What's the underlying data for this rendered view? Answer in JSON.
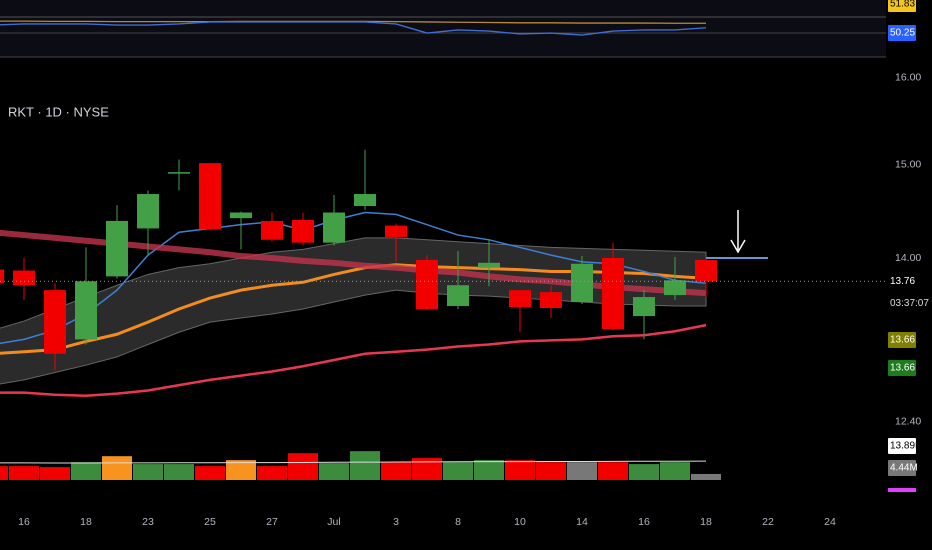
{
  "chart_data": {
    "type": "candlestick",
    "title": "RKT · 1D · NYSE",
    "categories": [
      null,
      "16",
      null,
      "18",
      null,
      "23",
      null,
      "25",
      null,
      "27",
      null,
      "Jul",
      null,
      "3",
      null,
      "8",
      null,
      "10",
      null,
      "14",
      null,
      "16",
      null,
      "18",
      null,
      "22",
      null,
      "24"
    ],
    "open": [
      13.88,
      13.87,
      13.67,
      13.18,
      13.81,
      14.31,
      14.91,
      15.02,
      14.42,
      14.39,
      14.4,
      14.16,
      14.55,
      14.34,
      13.98,
      13.51,
      13.9,
      13.67,
      13.65,
      13.55,
      14.0,
      13.41,
      13.62,
      13.98,
      null,
      null,
      null,
      null
    ],
    "high": [
      13.93,
      14.0,
      13.74,
      14.11,
      14.56,
      14.72,
      15.06,
      15.02,
      14.49,
      14.48,
      14.48,
      14.67,
      15.17,
      14.36,
      14.03,
      14.07,
      14.19,
      13.67,
      13.72,
      14.02,
      14.16,
      13.67,
      14.01,
      14.0,
      null,
      null,
      null,
      null
    ],
    "low": [
      13.67,
      13.57,
      12.88,
      13.13,
      13.79,
      14.03,
      14.72,
      14.29,
      14.09,
      14.17,
      14.13,
      14.13,
      14.51,
      13.96,
      13.47,
      13.48,
      13.71,
      13.25,
      13.39,
      13.53,
      13.27,
      13.18,
      13.57,
      13.6,
      null,
      null,
      null,
      null
    ],
    "close": [
      13.74,
      13.72,
      13.04,
      13.76,
      14.39,
      14.68,
      14.92,
      14.3,
      14.48,
      14.19,
      14.16,
      14.48,
      14.68,
      14.22,
      13.48,
      13.72,
      13.95,
      13.5,
      13.49,
      13.94,
      13.28,
      13.6,
      13.77,
      13.76,
      null,
      null,
      null,
      null
    ],
    "up_color": "#43a047",
    "down_color": "#f20000",
    "ylim": [
      11.7,
      16.25
    ],
    "log_scale": true,
    "yticks": [
      {
        "value": 16,
        "label": "16.00"
      },
      {
        "value": 15,
        "label": "15.00"
      },
      {
        "value": 14,
        "label": "14.00"
      },
      {
        "value": 12.4,
        "label": "12.40"
      }
    ],
    "countdown": "03:37:07",
    "badges": [
      {
        "label": "13.66",
        "color": "#7f7f00"
      },
      {
        "label": "13.66",
        "color": "#1e7b1e"
      }
    ],
    "band": {
      "color": "#3a3a3a",
      "upper": [
        13.27,
        13.36,
        13.48,
        13.6,
        13.72,
        13.83,
        13.9,
        13.94,
        14.0,
        14.06,
        14.09,
        14.15,
        14.21,
        14.21,
        14.19,
        14.17,
        14.15,
        14.13,
        14.11,
        14.1,
        14.09,
        14.08,
        14.07,
        14.06,
        null,
        null,
        null,
        null
      ],
      "lower": [
        12.74,
        12.79,
        12.86,
        12.93,
        13.01,
        13.13,
        13.25,
        13.35,
        13.39,
        13.43,
        13.48,
        13.55,
        13.62,
        13.67,
        13.64,
        13.62,
        13.61,
        13.59,
        13.57,
        13.55,
        13.53,
        13.52,
        13.51,
        13.51,
        null,
        null,
        null,
        null
      ]
    },
    "overlays": [
      {
        "color": "#e8384f",
        "width": 2.5,
        "values": [
          12.67,
          12.67,
          12.65,
          12.64,
          12.66,
          12.69,
          12.74,
          12.79,
          12.83,
          12.87,
          12.92,
          12.98,
          13.04,
          13.06,
          13.08,
          13.11,
          13.13,
          13.16,
          13.17,
          13.18,
          13.21,
          13.22,
          13.26,
          13.32,
          null,
          null,
          null,
          null
        ]
      },
      {
        "color": "#f28c1e",
        "width": 3,
        "values": [
          13.04,
          13.06,
          13.08,
          13.16,
          13.23,
          13.35,
          13.48,
          13.59,
          13.67,
          13.72,
          13.75,
          13.83,
          13.9,
          13.93,
          13.91,
          13.9,
          13.89,
          13.88,
          13.86,
          13.86,
          13.85,
          13.84,
          13.81,
          13.79,
          null,
          null,
          null,
          null
        ]
      },
      {
        "color": "#3f7fd6",
        "width": 1.5,
        "values": [
          13.13,
          13.18,
          13.27,
          13.43,
          13.67,
          14.03,
          14.27,
          14.31,
          14.35,
          14.38,
          14.29,
          14.4,
          14.48,
          14.46,
          14.35,
          14.24,
          14.19,
          14.11,
          14.03,
          13.96,
          13.94,
          13.86,
          13.77,
          13.74,
          null,
          null,
          null,
          null
        ]
      },
      {
        "color": "#c2334d",
        "width": 6,
        "values": [
          14.27,
          14.24,
          14.21,
          14.18,
          14.15,
          14.12,
          14.09,
          14.06,
          14.02,
          14.0,
          13.97,
          13.95,
          13.92,
          13.9,
          13.87,
          13.85,
          13.81,
          13.78,
          13.76,
          13.73,
          13.7,
          13.68,
          13.66,
          13.64,
          null,
          null,
          null,
          null
        ]
      }
    ],
    "volume": {
      "ylim": [
        0,
        36
      ],
      "values": [
        10.2,
        10.2,
        9.5,
        13.1,
        17.5,
        11.7,
        11.7,
        10.2,
        14.6,
        10.2,
        19.7,
        12.4,
        21.2,
        13.1,
        16.1,
        13.1,
        14.6,
        14.6,
        13.1,
        13.1,
        13.1,
        11.7,
        13.1,
        4.44,
        null,
        null,
        null,
        null
      ],
      "colors": [
        "#f20000",
        "#f20000",
        "#f20000",
        "#3d8b3d",
        "#f7931e",
        "#3d8b3d",
        "#3d8b3d",
        "#f20000",
        "#f7931e",
        "#f20000",
        "#f20000",
        "#3d8b3d",
        "#3d8b3d",
        "#f20000",
        "#f20000",
        "#3d8b3d",
        "#3d8b3d",
        "#f20000",
        "#f20000",
        "#787878",
        "#f20000",
        "#3d8b3d",
        "#3d8b3d",
        "#787878",
        null,
        null,
        null,
        null
      ],
      "last_value_label": "4.44M",
      "ma": {
        "color": "#dddddd",
        "value_label": "13.89M",
        "values": [
          12.6,
          12.6,
          12.5,
          12.5,
          12.6,
          12.6,
          12.7,
          12.7,
          12.8,
          12.8,
          12.9,
          13.0,
          13.1,
          13.2,
          13.3,
          13.4,
          13.5,
          13.5,
          13.6,
          13.6,
          13.7,
          13.8,
          13.8,
          13.89,
          null,
          null,
          null,
          null
        ]
      }
    },
    "rsi": {
      "ylim": [
        40,
        60
      ],
      "series": [
        {
          "color": "#b8893a",
          "badge_color": "#f5c518",
          "values": [
            52.6,
            52.6,
            52.5,
            52.5,
            52.4,
            52.4,
            52.4,
            52.4,
            52.5,
            52.5,
            52.5,
            52.5,
            52.5,
            52.4,
            52.3,
            52.2,
            52.1,
            52.0,
            52.0,
            51.9,
            51.9,
            51.9,
            51.85,
            51.83,
            null,
            null,
            null,
            null
          ]
        },
        {
          "color": "#3f6fd6",
          "badge_color": "#2962ff",
          "values": [
            51.2,
            51.6,
            51.6,
            51.6,
            51.2,
            51.2,
            51.6,
            52.3,
            52.3,
            52.3,
            52.3,
            52.3,
            52.3,
            51.6,
            48.4,
            49.5,
            49.1,
            48.1,
            48.4,
            47.7,
            49.1,
            49.5,
            49.5,
            50.25,
            null,
            null,
            null,
            null
          ]
        }
      ]
    }
  }
}
